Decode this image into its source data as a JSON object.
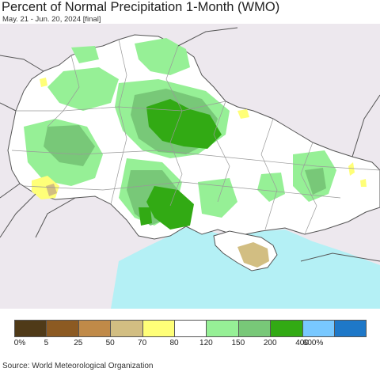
{
  "header": {
    "title": "Percent of Normal Precipitation 1-Month (WMO)",
    "subtitle": "May. 21 - Jun. 20, 2024 [final]"
  },
  "legend": {
    "ticks": [
      "0%",
      "5",
      "25",
      "50",
      "70",
      "80",
      "120",
      "150",
      "200",
      "400",
      "600%"
    ],
    "colors": [
      "#4f3a18",
      "#8c5a22",
      "#c08a48",
      "#d2be82",
      "#ffff78",
      "#ffffff",
      "#96f096",
      "#78c878",
      "#32aa14",
      "#78c8ff",
      "#1e78c8"
    ]
  },
  "footer": {
    "source": "Source: World Meteorological Organization"
  },
  "colors": {
    "sea": "#b4f0f5",
    "outside": "#ede8ee",
    "land": "#ffffff",
    "border": "#666666"
  }
}
